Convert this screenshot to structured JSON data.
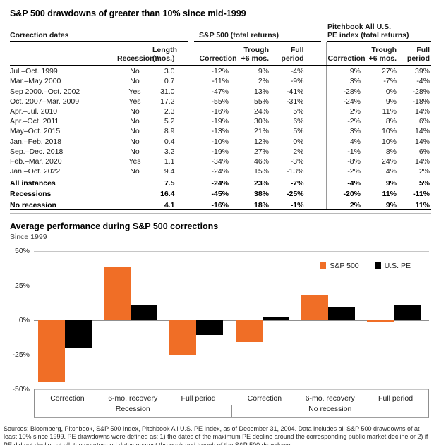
{
  "table": {
    "title": "S&P 500 drawdowns of greater than 10% since mid-1999",
    "header": {
      "correction_dates": "Correction dates",
      "sp500_group": "S&P 500 (total returns)",
      "pe_group": "Pitchbook All U.S.\nPE index (total returns)",
      "recession": "Recession?",
      "length": "Length\n(mos.)",
      "correction": "Correction",
      "trough": "Trough\n+6 mos.",
      "full": "Full\nperiod"
    },
    "rows": [
      {
        "dates": "Jul.–Oct. 1999",
        "recession": "No",
        "length": "3.0",
        "sp": [
          "-12%",
          "9%",
          "-4%"
        ],
        "pe": [
          "9%",
          "27%",
          "39%"
        ]
      },
      {
        "dates": "Mar.–May 2000",
        "recession": "No",
        "length": "0.7",
        "sp": [
          "-11%",
          "2%",
          "-9%"
        ],
        "pe": [
          "3%",
          "-7%",
          "-4%"
        ]
      },
      {
        "dates": "Sep 2000.–Oct. 2002",
        "recession": "Yes",
        "length": "31.0",
        "sp": [
          "-47%",
          "13%",
          "-41%"
        ],
        "pe": [
          "-28%",
          "0%",
          "-28%"
        ]
      },
      {
        "dates": "Oct. 2007–Mar. 2009",
        "recession": "Yes",
        "length": "17.2",
        "sp": [
          "-55%",
          "55%",
          "-31%"
        ],
        "pe": [
          "-24%",
          "9%",
          "-18%"
        ]
      },
      {
        "dates": "Apr.–Jul. 2010",
        "recession": "No",
        "length": "2.3",
        "sp": [
          "-16%",
          "24%",
          "5%"
        ],
        "pe": [
          "2%",
          "11%",
          "14%"
        ]
      },
      {
        "dates": "Apr.–Oct. 2011",
        "recession": "No",
        "length": "5.2",
        "sp": [
          "-19%",
          "30%",
          "6%"
        ],
        "pe": [
          "-2%",
          "8%",
          "6%"
        ]
      },
      {
        "dates": "May–Oct. 2015",
        "recession": "No",
        "length": "8.9",
        "sp": [
          "-13%",
          "21%",
          "5%"
        ],
        "pe": [
          "3%",
          "10%",
          "14%"
        ]
      },
      {
        "dates": "Jan.–Feb. 2018",
        "recession": "No",
        "length": "0.4",
        "sp": [
          "-10%",
          "12%",
          "0%"
        ],
        "pe": [
          "4%",
          "10%",
          "14%"
        ]
      },
      {
        "dates": "Sep.–Dec. 2018",
        "recession": "No",
        "length": "3.2",
        "sp": [
          "-19%",
          "27%",
          "2%"
        ],
        "pe": [
          "-1%",
          "8%",
          "6%"
        ]
      },
      {
        "dates": "Feb.–Mar. 2020",
        "recession": "Yes",
        "length": "1.1",
        "sp": [
          "-34%",
          "46%",
          "-3%"
        ],
        "pe": [
          "-8%",
          "24%",
          "14%"
        ]
      },
      {
        "dates": "Jan.–Oct. 2022",
        "recession": "No",
        "length": "9.4",
        "sp": [
          "-24%",
          "15%",
          "-13%"
        ],
        "pe": [
          "-2%",
          "4%",
          "2%"
        ]
      }
    ],
    "summary": [
      {
        "label": "All instances",
        "length": "7.5",
        "sp": [
          "-24%",
          "23%",
          "-7%"
        ],
        "pe": [
          "-4%",
          "9%",
          "5%"
        ]
      },
      {
        "label": "Recessions",
        "length": "16.4",
        "sp": [
          "-45%",
          "38%",
          "-25%"
        ],
        "pe": [
          "-20%",
          "11%",
          "-11%"
        ]
      },
      {
        "label": "No recession",
        "length": "4.1",
        "sp": [
          "-16%",
          "18%",
          "-1%"
        ],
        "pe": [
          "2%",
          "9%",
          "11%"
        ]
      }
    ]
  },
  "chart_data": {
    "type": "bar",
    "title": "Average performance during S&P 500 corrections",
    "subtitle": "Since 1999",
    "categories": [
      "Correction",
      "6-mo. recovery",
      "Full period",
      "Correction",
      "6-mo. recovery",
      "Full period"
    ],
    "group_labels": [
      "Recession",
      "No recession"
    ],
    "series": [
      {
        "name": "S&P 500",
        "color": "#F06E26",
        "values": [
          -45,
          38,
          -25,
          -16,
          18,
          -1
        ]
      },
      {
        "name": "U.S. PE",
        "color": "#000000",
        "values": [
          -20,
          11,
          -11,
          2,
          9,
          11
        ]
      }
    ],
    "ylim": [
      -50,
      50
    ],
    "yticks": [
      "50%",
      "25%",
      "0%",
      "-25%",
      "-50%"
    ],
    "grid": true,
    "legend_position": "top-right"
  },
  "source_note": "Sources: Bloomberg, Pitchbook, S&P 500 Index, Pitchbook All U.S. PE Index, as of December 31, 2004. Data includes all S&P 500 drawdowns of at least 10% since 1999. PE drawdowns were defined as: 1) the dates of the maximum PE decline around the corresponding public market decline or 2) if PE did not decline at all, the quarter-end dates nearest the peak and trough of the S&P 500 drawdown."
}
